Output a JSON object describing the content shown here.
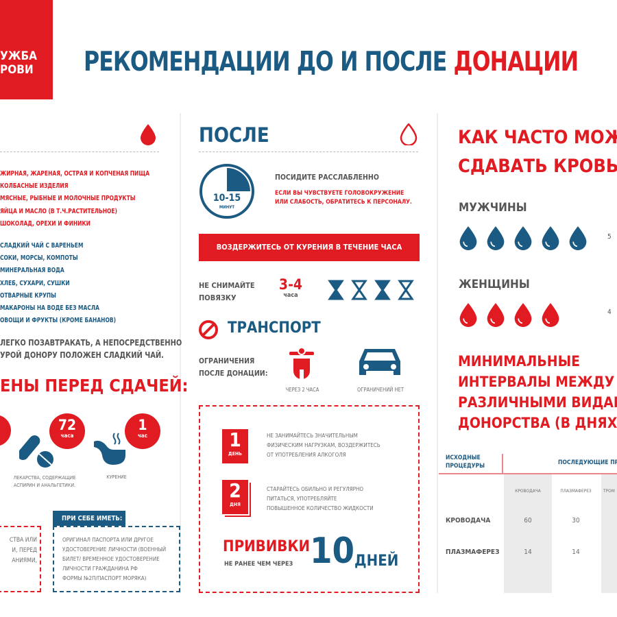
{
  "logo": {
    "line1": "УЖБА",
    "line2": "РОВИ"
  },
  "title": {
    "part1": "РЕКОМЕНДАЦИИ ДО И ПОСЛЕ ",
    "part2": "ДОНАЦИИ"
  },
  "colors": {
    "red": "#e11b22",
    "blue": "#1b5a82"
  },
  "left": {
    "forbidden_foods": [
      "ЖИРНАЯ, ЖАРЕНАЯ, ОСТРАЯ И КОПЧЕНАЯ ПИЩА",
      "КОЛБАСНЫЕ ИЗДЕЛИЯ",
      "МЯСНЫЕ, РЫБНЫЕ И МОЛОЧНЫЕ ПРОДУКТЫ",
      "ЯЙЦА И МАСЛО (В Т.Ч.РАСТИТЕЛЬНОЕ)",
      "ШОКОЛАД, ОРЕХИ И ФИНИКИ"
    ],
    "allowed_foods": [
      "СЛАДКИЙ ЧАЙ С ВАРЕНЬЕМ",
      "СОКИ, МОРСЫ, КОМПОТЫ",
      "МИНЕРАЛЬНАЯ ВОДА",
      "ХЛЕБ, СУХАРИ, СУШКИ",
      "ОТВАРНЫЕ КРУПЫ",
      "МАКАРОНЫ НА ВОДЕ БЕЗ МАСЛА",
      "ОВОЩИ И ФРУКТЫ (КРОМЕ БАНАНОВ)"
    ],
    "breakfast_line1": "ЛЕГКО ПОЗАВТРАКАТЬ, А НЕПОСРЕДСТВЕННО",
    "breakfast_line2": "УРОЙ ДОНОРУ ПОЛОЖЕН СЛАДКИЙ ЧАЙ.",
    "contra_heading": "ЕНЫ ПЕРЕД СДАЧЕЙ:",
    "meds": {
      "value": "72",
      "unit": "часа",
      "label1": "ЛЕКАРСТВА, СОДЕРЖАЩИЕ",
      "label2": "АСПИРИН И АНАЛЬГЕТИКИ."
    },
    "smoking": {
      "value": "1",
      "unit": "час",
      "label": "КУРЕНИЕ"
    },
    "red_box": [
      "СТВА ИЛИ",
      "И, ПЕРЕД",
      "АНИЯМИ,"
    ],
    "bring": {
      "heading": "ПРИ СЕБЕ ИМЕТЬ:",
      "lines": [
        "ОРИГИНАЛ ПАСПОРТА ИЛИ ДРУГОЕ",
        "УДОСТОВЕРЕНИЕ ЛИЧНОСТИ (ВОЕННЫЙ",
        "БИЛЕТ/ ВРЕМЕННОЕ УДОСТОВЕРЕНИЕ",
        "ЛИЧНОСТИ ГРАЖДАНИНА РФ",
        "ФОРМЫ №2П/ПАСПОРТ МОРЯКА)"
      ]
    }
  },
  "after": {
    "heading": "ПОСЛЕ",
    "clock": {
      "value": "10-15",
      "unit": "МИНУТ"
    },
    "relax": "ПОСИДИТЕ РАССЛАБЛЕННО",
    "warn1": "ЕСЛИ ВЫ ЧУВСТВУЕТЕ ГОЛОВОКРУЖЕНИЕ",
    "warn2": "ИЛИ СЛАБОСТЬ, ОБРАТИТЕСЬ К ПЕРСОНАЛУ.",
    "no_smoking_banner": "ВОЗДЕРЖИТЕСЬ ОТ КУРЕНИЯ В ТЕЧЕНИЕ ЧАСА",
    "bandage1": "НЕ СНИМАЙТЕ",
    "bandage2": "ПОВЯЗКУ",
    "bandage_value": "3-4",
    "bandage_unit": "часа",
    "transport_heading": "ТРАНСПОРТ",
    "restrict1": "ОГРАНИЧЕНИЯ",
    "restrict2": "ПОСЛЕ ДОНАЦИИ:",
    "moto_label": "ЧЕРЕЗ 2 ЧАСА",
    "car_label": "ОГРАНИЧЕНИЙ НЕТ",
    "day1": {
      "num": "1",
      "unit": "ДЕНЬ",
      "lines": [
        "НЕ ЗАНИМАЙТЕСЬ ЗНАЧИТЕЛЬНЫМ",
        "ФИЗИЧЕСКИМ НАГРУЗКАМ, ВОЗДЕРЖИТЕСЬ",
        "ОТ УПОТРЕБЛЕНИЯ АЛКОГОЛЯ"
      ]
    },
    "day2": {
      "num": "2",
      "unit": "ДНЯ",
      "lines": [
        "СТАРАЙТЕСЬ ОБИЛЬНО И РЕГУЛЯРНО",
        "ПИТАТЬСЯ, УПОТРЕБЛЯЙТЕ",
        "ПОВЫШЕННОЕ КОЛИЧЕСТВО ЖИДКОСТИ"
      ]
    },
    "vacc": "ПРИВИВКИ",
    "vacc_sub": "НЕ РАНЕЕ ЧЕМ ЧЕРЕЗ",
    "vacc_value": "10",
    "vacc_unit": "ДНЕЙ"
  },
  "right": {
    "heading1": "КАК ЧАСТО МОЖН",
    "heading2": "СДАВАТЬ КРОВЬ?",
    "men": "МУЖЧИНЫ",
    "men_drops": 5,
    "men_count": "5",
    "women": "ЖЕНЩИНЫ",
    "women_drops": 4,
    "women_count": "4",
    "intervals": [
      "МИНИМАЛЬНЫЕ",
      "ИНТЕРВАЛЫ МЕЖДУ",
      "РАЗЛИЧНЫМИ ВИДАМИ",
      "ДОНОРСТВА (В ДНЯХ):"
    ],
    "table": {
      "col_source1": "ИСХОДНЫЕ",
      "col_source2": "ПРОЦЕДУРЫ",
      "col_next": "ПОСЛЕДУЮЩИЕ ПРО",
      "sub": [
        "КРОВОДАЧА",
        "ПЛАЗМАФЕРЕЗ",
        "ТРОМ"
      ],
      "rows": [
        {
          "label": "КРОВОДАЧА",
          "values": [
            "60",
            "30"
          ]
        },
        {
          "label": "ПЛАЗМАФЕРЕЗ",
          "values": [
            "14",
            "14"
          ]
        }
      ]
    }
  }
}
